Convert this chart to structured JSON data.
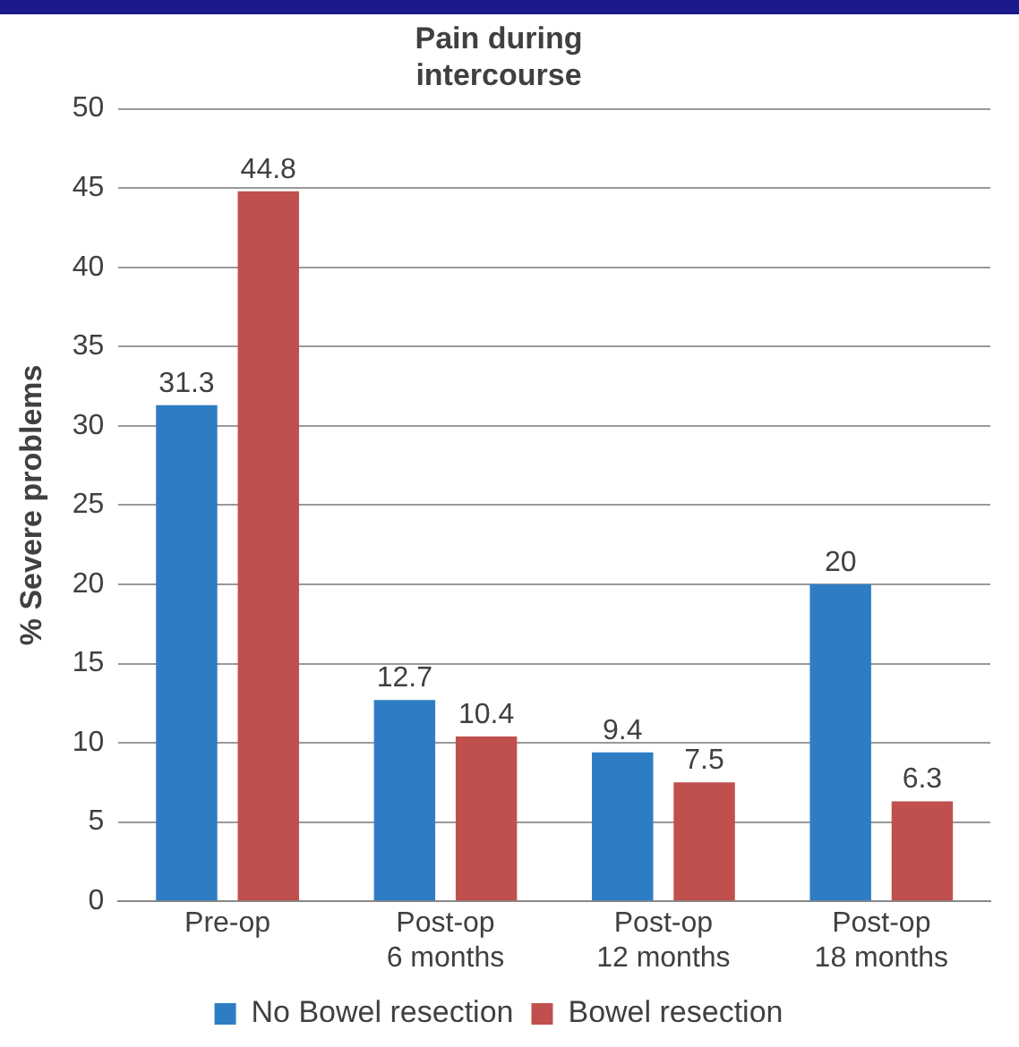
{
  "chart_data": {
    "type": "bar",
    "title": "Pain during\nintercourse",
    "ylabel": "% Severe problems",
    "categories": [
      "Pre-op",
      "Post-op\n6 months",
      "Post-op\n12 months",
      "Post-op\n18 months"
    ],
    "series": [
      {
        "name": "No Bowel resection",
        "color": "#2e7dc4",
        "values": [
          31.3,
          12.7,
          9.4,
          20
        ]
      },
      {
        "name": "Bowel resection",
        "color": "#c0504d",
        "values": [
          44.8,
          10.4,
          7.5,
          6.3
        ]
      }
    ],
    "ylim": [
      0,
      50
    ],
    "yticks": [
      0,
      5,
      10,
      15,
      20,
      25,
      30,
      35,
      40,
      45,
      50
    ],
    "grid": "y",
    "legend": "bottom",
    "data_labels": true
  }
}
